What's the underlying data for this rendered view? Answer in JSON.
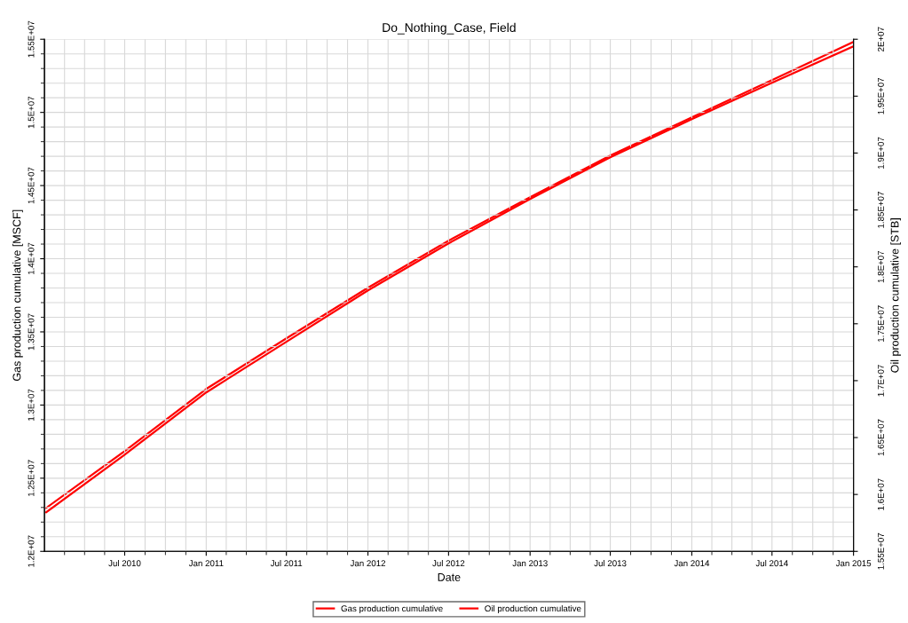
{
  "chart_data": {
    "type": "line",
    "title": "Do_Nothing_Case, Field",
    "xlabel": "Date",
    "ylabel": "Gas production cumulative [MSCF]",
    "y2label": "Oil production cumulative [STB]",
    "x": [
      "2010-01-05",
      "2010-07-01",
      "2011-01-01",
      "2011-07-01",
      "2012-01-01",
      "2012-07-01",
      "2013-01-01",
      "2013-07-01",
      "2014-01-01",
      "2014-07-01",
      "2015-01-01"
    ],
    "series": [
      {
        "name": "Gas production cumulative",
        "color": "#ff0000",
        "values": [
          12267000,
          12661000,
          13086000,
          13432000,
          13783000,
          14105000,
          14408000,
          14693000,
          14954000,
          15203000,
          15452000
        ]
      },
      {
        "name": "Oil production cumulative",
        "color": "#ff0000",
        "axis": "y2",
        "values": [
          15882000,
          16381000,
          16927000,
          17372000,
          17816000,
          18230000,
          18612000,
          18978000,
          19314000,
          19641000,
          19977000
        ]
      }
    ],
    "xlim": [
      "2010-01-01",
      "2015-01-01"
    ],
    "xticks": [
      {
        "value": "2010-07-01",
        "label": "Jul 2010"
      },
      {
        "value": "2011-01-01",
        "label": "Jan 2011"
      },
      {
        "value": "2011-07-01",
        "label": "Jul 2011"
      },
      {
        "value": "2012-01-01",
        "label": "Jan 2012"
      },
      {
        "value": "2012-07-01",
        "label": "Jul 2012"
      },
      {
        "value": "2013-01-01",
        "label": "Jan 2013"
      },
      {
        "value": "2013-07-01",
        "label": "Jul 2013"
      },
      {
        "value": "2014-01-01",
        "label": "Jan 2014"
      },
      {
        "value": "2014-07-01",
        "label": "Jul 2014"
      },
      {
        "value": "2015-01-01",
        "label": "Jan 2015"
      }
    ],
    "ylim": [
      12000000,
      15500000
    ],
    "yticks": [
      {
        "value": 12000000,
        "label": "1.2E+07"
      },
      {
        "value": 12500000,
        "label": "1.25E+07"
      },
      {
        "value": 13000000,
        "label": "1.3E+07"
      },
      {
        "value": 13500000,
        "label": "1.35E+07"
      },
      {
        "value": 14000000,
        "label": "1.4E+07"
      },
      {
        "value": 14500000,
        "label": "1.45E+07"
      },
      {
        "value": 15000000,
        "label": "1.5E+07"
      },
      {
        "value": 15500000,
        "label": "1.55E+07"
      }
    ],
    "y2lim": [
      15500000,
      20000000
    ],
    "y2ticks": [
      {
        "value": 15500000,
        "label": "1.55E+07"
      },
      {
        "value": 16000000,
        "label": "1.6E+07"
      },
      {
        "value": 16500000,
        "label": "1.65E+07"
      },
      {
        "value": 17000000,
        "label": "1.7E+07"
      },
      {
        "value": 17500000,
        "label": "1.75E+07"
      },
      {
        "value": 18000000,
        "label": "1.8E+07"
      },
      {
        "value": 18500000,
        "label": "1.85E+07"
      },
      {
        "value": 19000000,
        "label": "1.9E+07"
      },
      {
        "value": 19500000,
        "label": "1.95E+07"
      },
      {
        "value": 20000000,
        "label": "2E+07"
      }
    ],
    "grid": true,
    "legend": "bottom",
    "marker": "none",
    "line_style": "solid"
  }
}
